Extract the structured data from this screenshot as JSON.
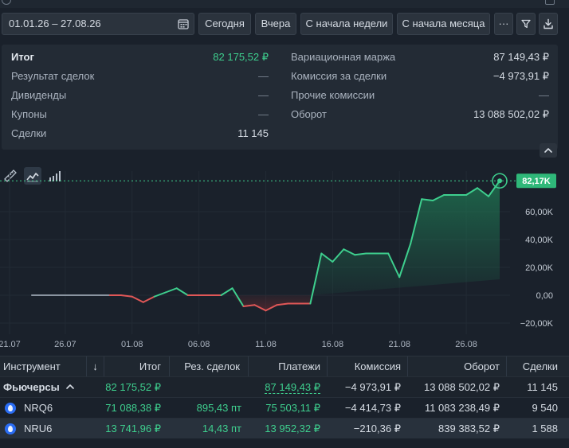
{
  "toolbar": {
    "date_range": "01.01.26 – 27.08.26",
    "today": "Сегодня",
    "yesterday": "Вчера",
    "week_start": "С начала недели",
    "month_start": "С начала месяца",
    "more": "···"
  },
  "summary": {
    "left": [
      {
        "label": "Итог",
        "value": "82 175,52 ₽"
      },
      {
        "label": "Результат сделок",
        "value": "—"
      },
      {
        "label": "Дивиденды",
        "value": "—"
      },
      {
        "label": "Купоны",
        "value": "—"
      },
      {
        "label": "Сделки",
        "value": "11 145"
      }
    ],
    "right": [
      {
        "label": "Вариационная маржа",
        "value": "87 149,43 ₽"
      },
      {
        "label": "Комиссия за сделки",
        "value": "−4 973,91 ₽"
      },
      {
        "label": "Прочие комиссии",
        "value": "—"
      },
      {
        "label": "Оборот",
        "value": "13 088 502,02 ₽"
      }
    ]
  },
  "chart_data": {
    "type": "line",
    "current_label": "82,17K",
    "x_ticks": [
      "21.07",
      "26.07",
      "01.08",
      "06.08",
      "11.08",
      "16.08",
      "21.08",
      "26.08"
    ],
    "y_ticks": [
      "60,00K",
      "40,00K",
      "20,00K",
      "0,00",
      "−20,00K"
    ],
    "ylim": [
      -25000,
      90000
    ],
    "colors": {
      "positive": "#3ecf8e",
      "negative": "#e05757",
      "neutral": "#8a94a0"
    },
    "points": [
      [
        0,
        0
      ],
      [
        4,
        0
      ],
      [
        7,
        0
      ],
      [
        8,
        0
      ],
      [
        9,
        -1000
      ],
      [
        10,
        -5000
      ],
      [
        11,
        -1000
      ],
      [
        12,
        2000
      ],
      [
        13,
        5000
      ],
      [
        14,
        0
      ],
      [
        15,
        0
      ],
      [
        16,
        0
      ],
      [
        17,
        0
      ],
      [
        18,
        5000
      ],
      [
        19,
        -8000
      ],
      [
        20,
        -7000
      ],
      [
        21,
        -11000
      ],
      [
        22,
        -7000
      ],
      [
        23,
        -6000
      ],
      [
        24,
        -6000
      ],
      [
        25,
        -6000
      ],
      [
        26,
        30000
      ],
      [
        27,
        24000
      ],
      [
        28,
        33000
      ],
      [
        29,
        29000
      ],
      [
        30,
        30000
      ],
      [
        31,
        30000
      ],
      [
        32,
        30000
      ],
      [
        33,
        13000
      ],
      [
        34,
        37000
      ],
      [
        35,
        69000
      ],
      [
        36,
        68000
      ],
      [
        37,
        72000
      ],
      [
        38,
        72000
      ],
      [
        39,
        72000
      ],
      [
        40,
        77000
      ],
      [
        41,
        71000
      ],
      [
        42,
        82175
      ]
    ],
    "x_at_ticks": [
      -2,
      3,
      9,
      15,
      21,
      27,
      33,
      39
    ]
  },
  "table": {
    "headers": [
      "Инструмент",
      "↓",
      "Итог",
      "Рез. сделок",
      "Платежи",
      "Комиссия",
      "Оборот",
      "Сделки"
    ],
    "group": {
      "name": "Фьючерсы",
      "total": "82 175,52 ₽",
      "result": "",
      "payments": "87 149,43 ₽",
      "commission": "−4 973,91 ₽",
      "turnover": "13 088 502,02 ₽",
      "deals": "11 145"
    },
    "rows": [
      {
        "name": "NRQ6",
        "total": "71 088,38 ₽",
        "result": "895,43 пт",
        "payments": "75 503,11 ₽",
        "commission": "−4 414,73 ₽",
        "turnover": "11 083 238,49 ₽",
        "deals": "9 540"
      },
      {
        "name": "NRU6",
        "total": "13 741,96 ₽",
        "result": "14,43 пт",
        "payments": "13 952,32 ₽",
        "commission": "−210,36 ₽",
        "turnover": "839 383,52 ₽",
        "deals": "1 588"
      }
    ]
  }
}
